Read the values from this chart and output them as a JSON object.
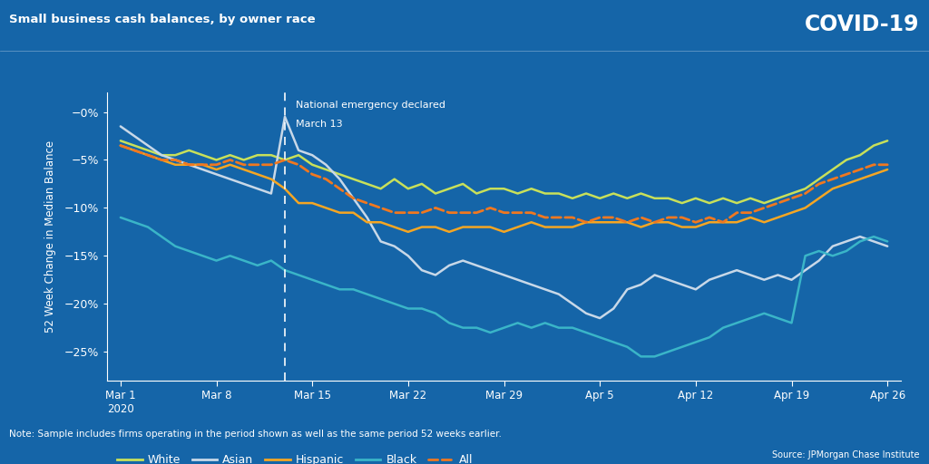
{
  "title": "Small business cash balances, by owner race",
  "covid_label": "COVID-19",
  "ylabel": "52 Week Change in Median Balance",
  "note": "Note: Sample includes firms operating in the period shown as well as the same period 52 weeks earlier.",
  "source": "Source: JPMorgan Chase Institute",
  "annotation_line1": "National emergency declared",
  "annotation_line2": "March 13",
  "bg_color": "#1565a8",
  "vline_x": 12,
  "yticks": [
    0,
    -5,
    -10,
    -15,
    -20,
    -25
  ],
  "ylim": [
    -28,
    2
  ],
  "xtick_labels": [
    "Mar 1\n2020",
    "Mar 8",
    "Mar 15",
    "Mar 22",
    "Mar 29",
    "Apr 5",
    "Apr 12",
    "Apr 19",
    "Apr 26"
  ],
  "xtick_positions": [
    0,
    7,
    14,
    21,
    28,
    35,
    42,
    49,
    56
  ],
  "series": {
    "White": {
      "color": "#c8e05a",
      "linestyle": "solid",
      "linewidth": 1.8,
      "values": [
        -3.0,
        -3.5,
        -4.0,
        -4.5,
        -4.5,
        -4.0,
        -4.5,
        -5.0,
        -4.5,
        -5.0,
        -4.5,
        -4.5,
        -5.0,
        -4.5,
        -5.5,
        -6.0,
        -6.5,
        -7.0,
        -7.5,
        -8.0,
        -7.0,
        -8.0,
        -7.5,
        -8.5,
        -8.0,
        -7.5,
        -8.5,
        -8.0,
        -8.0,
        -8.5,
        -8.0,
        -8.5,
        -8.5,
        -9.0,
        -8.5,
        -9.0,
        -8.5,
        -9.0,
        -8.5,
        -9.0,
        -9.0,
        -9.5,
        -9.0,
        -9.5,
        -9.0,
        -9.5,
        -9.0,
        -9.5,
        -9.0,
        -8.5,
        -8.0,
        -7.0,
        -6.0,
        -5.0,
        -4.5,
        -3.5,
        -3.0
      ]
    },
    "Asian": {
      "color": "#c8d8e8",
      "linestyle": "solid",
      "linewidth": 1.8,
      "values": [
        -1.5,
        -2.5,
        -3.5,
        -4.5,
        -5.0,
        -5.5,
        -6.0,
        -6.5,
        -7.0,
        -7.5,
        -8.0,
        -8.5,
        -0.5,
        -4.0,
        -4.5,
        -5.5,
        -7.0,
        -9.0,
        -11.0,
        -13.5,
        -14.0,
        -15.0,
        -16.5,
        -17.0,
        -16.0,
        -15.5,
        -16.0,
        -16.5,
        -17.0,
        -17.5,
        -18.0,
        -18.5,
        -19.0,
        -20.0,
        -21.0,
        -21.5,
        -20.5,
        -18.5,
        -18.0,
        -17.0,
        -17.5,
        -18.0,
        -18.5,
        -17.5,
        -17.0,
        -16.5,
        -17.0,
        -17.5,
        -17.0,
        -17.5,
        -16.5,
        -15.5,
        -14.0,
        -13.5,
        -13.0,
        -13.5,
        -14.0
      ]
    },
    "Hispanic": {
      "color": "#f5a623",
      "linestyle": "solid",
      "linewidth": 1.8,
      "values": [
        -3.5,
        -4.0,
        -4.5,
        -5.0,
        -5.5,
        -5.5,
        -5.5,
        -6.0,
        -5.5,
        -6.0,
        -6.5,
        -7.0,
        -8.0,
        -9.5,
        -9.5,
        -10.0,
        -10.5,
        -10.5,
        -11.5,
        -11.5,
        -12.0,
        -12.5,
        -12.0,
        -12.0,
        -12.5,
        -12.0,
        -12.0,
        -12.0,
        -12.5,
        -12.0,
        -11.5,
        -12.0,
        -12.0,
        -12.0,
        -11.5,
        -11.5,
        -11.5,
        -11.5,
        -12.0,
        -11.5,
        -11.5,
        -12.0,
        -12.0,
        -11.5,
        -11.5,
        -11.5,
        -11.0,
        -11.5,
        -11.0,
        -10.5,
        -10.0,
        -9.0,
        -8.0,
        -7.5,
        -7.0,
        -6.5,
        -6.0
      ]
    },
    "Black": {
      "color": "#3ab5c8",
      "linestyle": "solid",
      "linewidth": 1.8,
      "values": [
        -11.0,
        -11.5,
        -12.0,
        -13.0,
        -14.0,
        -14.5,
        -15.0,
        -15.5,
        -15.0,
        -15.5,
        -16.0,
        -15.5,
        -16.5,
        -17.0,
        -17.5,
        -18.0,
        -18.5,
        -18.5,
        -19.0,
        -19.5,
        -20.0,
        -20.5,
        -20.5,
        -21.0,
        -22.0,
        -22.5,
        -22.5,
        -23.0,
        -22.5,
        -22.0,
        -22.5,
        -22.0,
        -22.5,
        -22.5,
        -23.0,
        -23.5,
        -24.0,
        -24.5,
        -25.5,
        -25.5,
        -25.0,
        -24.5,
        -24.0,
        -23.5,
        -22.5,
        -22.0,
        -21.5,
        -21.0,
        -21.5,
        -22.0,
        -15.0,
        -14.5,
        -15.0,
        -14.5,
        -13.5,
        -13.0,
        -13.5
      ]
    },
    "All": {
      "color": "#f07820",
      "linestyle": "dashed",
      "linewidth": 2.0,
      "values": [
        -3.5,
        -4.0,
        -4.5,
        -5.0,
        -5.0,
        -5.5,
        -5.5,
        -5.5,
        -5.0,
        -5.5,
        -5.5,
        -5.5,
        -5.0,
        -5.5,
        -6.5,
        -7.0,
        -8.0,
        -9.0,
        -9.5,
        -10.0,
        -10.5,
        -10.5,
        -10.5,
        -10.0,
        -10.5,
        -10.5,
        -10.5,
        -10.0,
        -10.5,
        -10.5,
        -10.5,
        -11.0,
        -11.0,
        -11.0,
        -11.5,
        -11.0,
        -11.0,
        -11.5,
        -11.0,
        -11.5,
        -11.0,
        -11.0,
        -11.5,
        -11.0,
        -11.5,
        -10.5,
        -10.5,
        -10.0,
        -9.5,
        -9.0,
        -8.5,
        -7.5,
        -7.0,
        -6.5,
        -6.0,
        -5.5,
        -5.5
      ]
    }
  }
}
